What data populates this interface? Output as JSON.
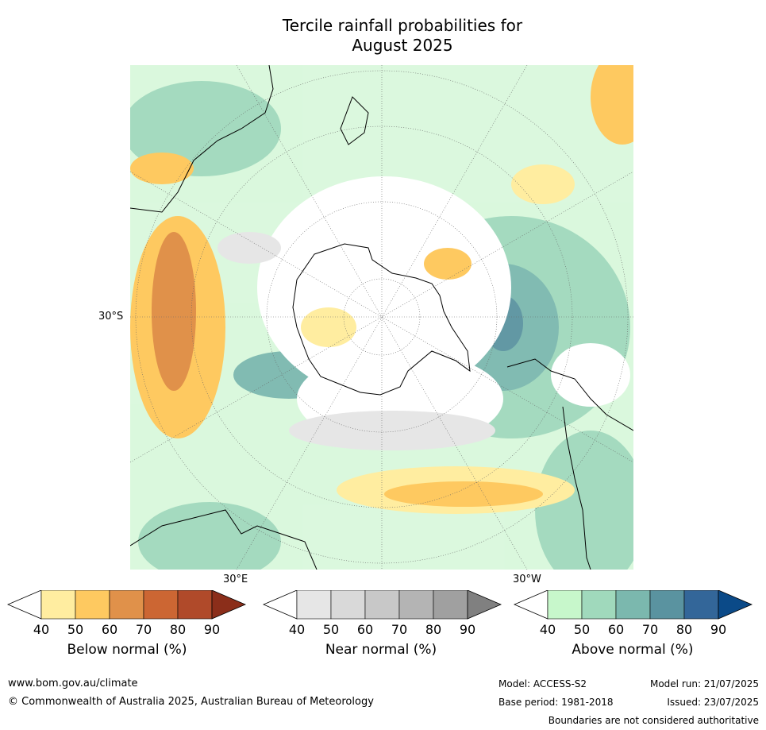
{
  "title_line1": "Tercile rainfall probabilities for",
  "title_line2": "August 2025",
  "labels": {
    "lat_30s": "30°S",
    "lon_30e": "30°E",
    "lon_30w": "30°W"
  },
  "legends": {
    "below": {
      "label": "Below normal (%)",
      "ticks": [
        "40",
        "50",
        "60",
        "70",
        "80",
        "90"
      ],
      "colors": [
        "#ffffff",
        "#ffeda0",
        "#fec960",
        "#e0914a",
        "#cc6633",
        "#b04a2a",
        "#8b2e1a"
      ]
    },
    "near": {
      "label": "Near normal (%)",
      "ticks": [
        "40",
        "50",
        "60",
        "70",
        "80",
        "90"
      ],
      "colors": [
        "#ffffff",
        "#e6e6e6",
        "#d9d9d9",
        "#c8c8c8",
        "#b4b4b4",
        "#a0a0a0",
        "#808080"
      ]
    },
    "above": {
      "label": "Above normal (%)",
      "ticks": [
        "40",
        "50",
        "60",
        "70",
        "80",
        "90"
      ],
      "colors": [
        "#ffffff",
        "#c7f7cb",
        "#a0d9bc",
        "#7bb8ae",
        "#5a93a0",
        "#336699",
        "#0b4a88"
      ]
    }
  },
  "footer": {
    "url": "www.bom.gov.au/climate",
    "copyright": "© Commonwealth of Australia 2025, Australian Bureau of Meteorology",
    "model": "Model: ACCESS-S2",
    "base_period": "Base period: 1981-2018",
    "model_run": "Model run: 21/07/2025",
    "issued": "Issued: 23/07/2025",
    "disclaimer": "Boundaries are not considered authoritative"
  }
}
